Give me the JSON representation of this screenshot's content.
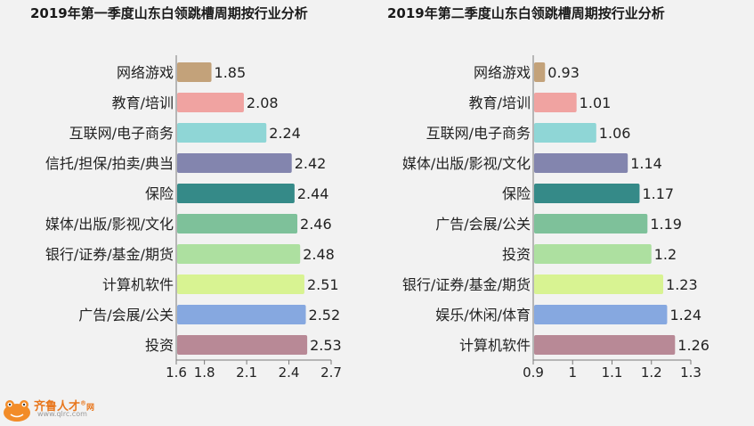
{
  "chart_data": [
    {
      "type": "bar",
      "orientation": "horizontal",
      "title": "2019年第一季度山东白领跳槽周期按行业分析",
      "categories": [
        "网络游戏",
        "教育/培训",
        "互联网/电子商务",
        "信托/担保/拍卖/典当",
        "保险",
        "媒体/出版/影视/文化",
        "银行/证券/基金/期货",
        "计算机软件",
        "广告/会展/公关",
        "投资"
      ],
      "values": [
        1.85,
        2.08,
        2.24,
        2.42,
        2.44,
        2.46,
        2.48,
        2.51,
        2.52,
        2.53
      ],
      "value_labels": [
        "1.85",
        "2.08",
        "2.24",
        "2.42",
        "2.44",
        "2.46",
        "2.48",
        "2.51",
        "2.52",
        "2.53"
      ],
      "xlim": [
        1.6,
        2.7
      ],
      "xticks": [
        1.6,
        1.8,
        2.1,
        2.4,
        2.7
      ],
      "xtick_labels": [
        "1.6",
        "1.8",
        "2.1",
        "2.4",
        "2.7"
      ],
      "colors": [
        "#c3a27a",
        "#f0a3a1",
        "#8fd6d6",
        "#8385ae",
        "#358a88",
        "#7ec19a",
        "#ade0a0",
        "#d8f392",
        "#86a8e0",
        "#b88996"
      ]
    },
    {
      "type": "bar",
      "orientation": "horizontal",
      "title": "2019年第二季度山东白领跳槽周期按行业分析",
      "categories": [
        "网络游戏",
        "教育/培训",
        "互联网/电子商务",
        "媒体/出版/影视/文化",
        "保险",
        "广告/会展/公关",
        "投资",
        "银行/证券/基金/期货",
        "娱乐/休闲/体育",
        "计算机软件"
      ],
      "values": [
        0.93,
        1.01,
        1.06,
        1.14,
        1.17,
        1.19,
        1.2,
        1.23,
        1.24,
        1.26
      ],
      "value_labels": [
        "0.93",
        "1.01",
        "1.06",
        "1.14",
        "1.17",
        "1.19",
        "1.2",
        "1.23",
        "1.24",
        "1.26"
      ],
      "xlim": [
        0.9,
        1.3
      ],
      "xticks": [
        0.9,
        1.0,
        1.1,
        1.2,
        1.3
      ],
      "xtick_labels": [
        "0.9",
        "1",
        "1.1",
        "1.2",
        "1.3"
      ],
      "colors": [
        "#c3a27a",
        "#f0a3a1",
        "#8fd6d6",
        "#8385ae",
        "#358a88",
        "#7ec19a",
        "#ade0a0",
        "#d8f392",
        "#86a8e0",
        "#b88996"
      ]
    }
  ],
  "watermark": {
    "brand": "齐鲁人才",
    "registered_mark": "®",
    "suffix": "网",
    "url": "www.qlrc.com"
  }
}
